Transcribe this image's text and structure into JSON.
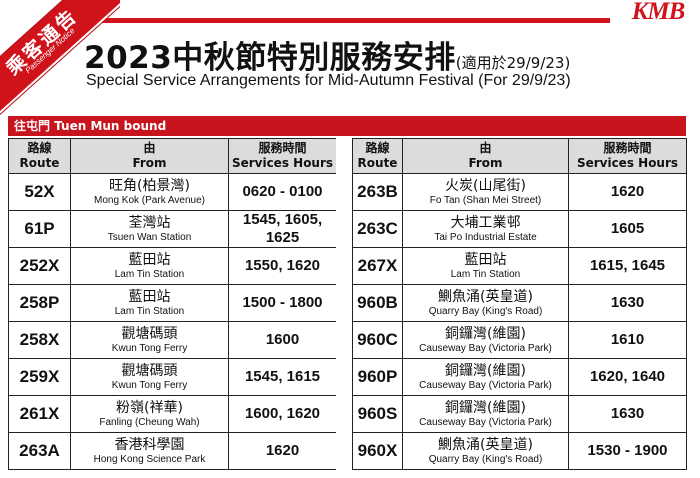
{
  "logo": "KMB",
  "ribbon": {
    "zh": "乘客通告",
    "en": "Passenger Notice"
  },
  "title": {
    "zh": "2023中秋節特別服務安排",
    "zh_note": "(適用於29/9/23)",
    "en": "Special Service Arrangements for Mid-Autumn Festival (For 29/9/23)"
  },
  "bound": "往屯門 Tuen Mun bound",
  "headers": {
    "route_zh": "路線",
    "route_en": "Route",
    "from_zh": "由",
    "from_en": "From",
    "hours_zh": "服務時間",
    "hours_en": "Services Hours"
  },
  "left_rows": [
    {
      "route": "52X",
      "from_zh": "旺角(柏景灣)",
      "from_en": "Mong Kok (Park Avenue)",
      "hours": "0620 - 0100"
    },
    {
      "route": "61P",
      "from_zh": "荃灣站",
      "from_en": "Tsuen Wan Station",
      "hours": "1545, 1605, 1625"
    },
    {
      "route": "252X",
      "from_zh": "藍田站",
      "from_en": "Lam Tin Station",
      "hours": "1550, 1620"
    },
    {
      "route": "258P",
      "from_zh": "藍田站",
      "from_en": "Lam Tin Station",
      "hours": "1500 - 1800"
    },
    {
      "route": "258X",
      "from_zh": "觀塘碼頭",
      "from_en": "Kwun Tong Ferry",
      "hours": "1600"
    },
    {
      "route": "259X",
      "from_zh": "觀塘碼頭",
      "from_en": "Kwun Tong Ferry",
      "hours": "1545, 1615"
    },
    {
      "route": "261X",
      "from_zh": "粉嶺(祥華)",
      "from_en": "Fanling (Cheung Wah)",
      "hours": "1600, 1620"
    },
    {
      "route": "263A",
      "from_zh": "香港科學園",
      "from_en": "Hong Kong Science  Park",
      "hours": "1620"
    }
  ],
  "right_rows": [
    {
      "route": "263B",
      "from_zh": "火炭(山尾街)",
      "from_en": "Fo Tan (Shan Mei Street)",
      "hours": "1620"
    },
    {
      "route": "263C",
      "from_zh": "大埔工業邨",
      "from_en": "Tai Po Industrial Estate",
      "hours": "1605"
    },
    {
      "route": "267X",
      "from_zh": "藍田站",
      "from_en": "Lam Tin Station",
      "hours": "1615, 1645"
    },
    {
      "route": "960B",
      "from_zh": "鰂魚涌(英皇道)",
      "from_en": "Quarry Bay (King's Road)",
      "hours": "1630"
    },
    {
      "route": "960C",
      "from_zh": "銅鑼灣(維園)",
      "from_en": "Causeway Bay (Victoria Park)",
      "hours": "1610"
    },
    {
      "route": "960P",
      "from_zh": "銅鑼灣(維園)",
      "from_en": "Causeway Bay (Victoria Park)",
      "hours": "1620, 1640"
    },
    {
      "route": "960S",
      "from_zh": "銅鑼灣(維園)",
      "from_en": "Causeway Bay (Victoria Park)",
      "hours": "1630"
    },
    {
      "route": "960X",
      "from_zh": "鰂魚涌(英皇道)",
      "from_en": "Quarry Bay (King's Road)",
      "hours": "1530 - 1900"
    }
  ],
  "colors": {
    "brand_red": "#d0121b",
    "header_gray": "#dcdcdc"
  }
}
